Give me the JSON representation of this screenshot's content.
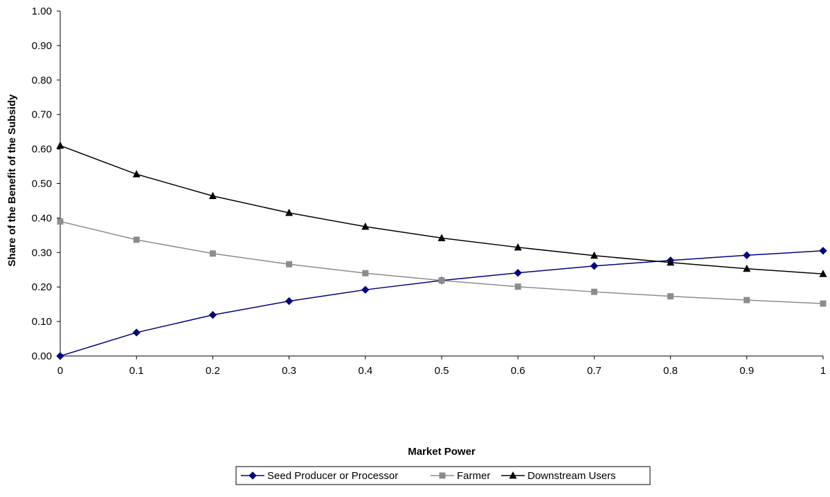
{
  "chart_data": {
    "type": "line",
    "title": "",
    "xlabel": "Market Power",
    "ylabel": "Share of the Benefit of the Subsidy",
    "x": [
      0,
      0.1,
      0.2,
      0.3,
      0.4,
      0.5,
      0.6,
      0.7,
      0.8,
      0.9,
      1
    ],
    "x_tick_labels": [
      "0",
      "0.1",
      "0.2",
      "0.3",
      "0.4",
      "0.5",
      "0.6",
      "0.7",
      "0.8",
      "0.9",
      "1"
    ],
    "y_tick_labels": [
      "0.00",
      "0.10",
      "0.20",
      "0.30",
      "0.40",
      "0.50",
      "0.60",
      "0.70",
      "0.80",
      "0.90",
      "1.00"
    ],
    "xlim": [
      0,
      1
    ],
    "ylim": [
      0,
      1
    ],
    "grid": false,
    "legend_position": "bottom",
    "series": [
      {
        "name": "Seed Producer or Processor",
        "color": "#000080",
        "marker": "diamond",
        "values": [
          0.0,
          0.068,
          0.119,
          0.159,
          0.192,
          0.219,
          0.241,
          0.261,
          0.277,
          0.292,
          0.305
        ]
      },
      {
        "name": "Farmer",
        "color": "#8c8c8c",
        "marker": "square",
        "values": [
          0.39,
          0.337,
          0.297,
          0.266,
          0.24,
          0.219,
          0.201,
          0.186,
          0.173,
          0.162,
          0.152
        ]
      },
      {
        "name": "Downstream Users",
        "color": "#000000",
        "marker": "triangle",
        "values": [
          0.61,
          0.527,
          0.464,
          0.415,
          0.375,
          0.342,
          0.315,
          0.291,
          0.271,
          0.253,
          0.238
        ]
      }
    ]
  }
}
